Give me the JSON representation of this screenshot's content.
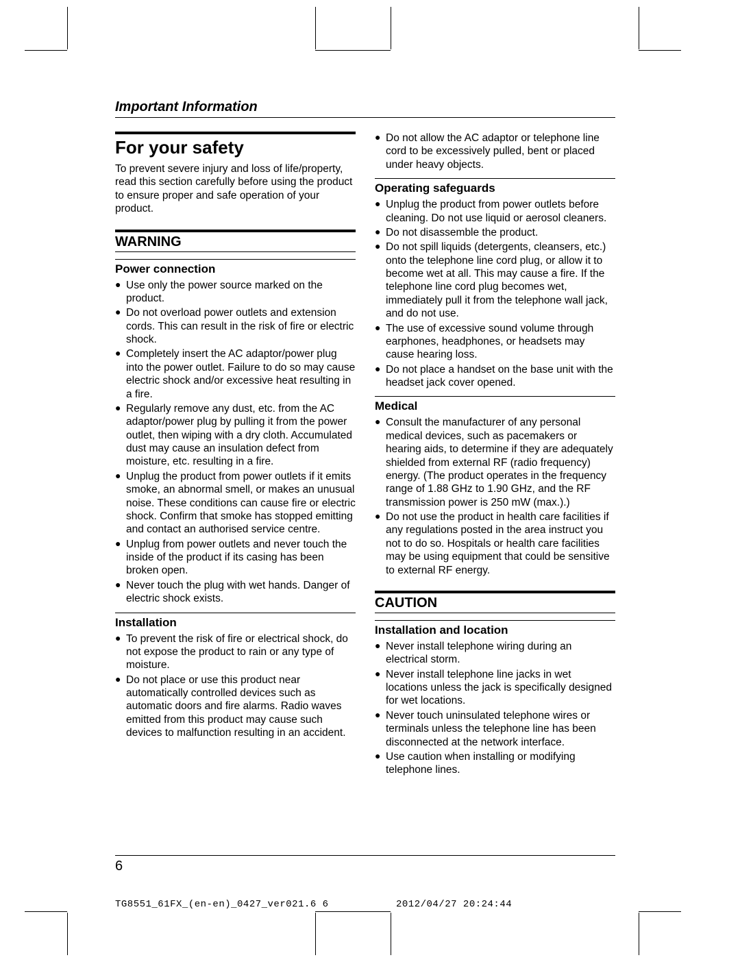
{
  "chapter_title": "Important Information",
  "page_number": "6",
  "footer": {
    "left": "TG8551_61FX_(en-en)_0427_ver021.6   6",
    "right": "2012/04/27   20:24:44"
  },
  "left_column": {
    "title_h1": "For your safety",
    "intro": "To prevent severe injury and loss of life/property, read this section carefully before using the product to ensure proper and safe operation of your product.",
    "warning_h2": "WARNING",
    "sections": [
      {
        "h3": "Power connection",
        "items": [
          "Use only the power source marked on the product.",
          "Do not overload power outlets and extension cords. This can result in the risk of fire or electric shock.",
          "Completely insert the AC adaptor/power plug into the power outlet. Failure to do so may cause electric shock and/or excessive heat resulting in a fire.",
          "Regularly remove any dust, etc. from the AC adaptor/power plug by pulling it from the power outlet, then wiping with a dry cloth. Accumulated dust may cause an insulation defect from moisture, etc. resulting in a fire.",
          "Unplug the product from power outlets if it emits smoke, an abnormal smell, or makes an unusual noise. These conditions can cause fire or electric shock. Confirm that smoke has stopped emitting and contact an authorised service centre.",
          "Unplug from power outlets and never touch the inside of the product if its casing has been broken open.",
          "Never touch the plug with wet hands. Danger of electric shock exists."
        ]
      },
      {
        "h3": "Installation",
        "items": [
          "To prevent the risk of fire or electrical shock, do not expose the product to rain or any type of moisture.",
          "Do not place or use this product near automatically controlled devices such as automatic doors and fire alarms. Radio waves emitted from this product may cause such devices to malfunction resulting in an accident."
        ]
      }
    ]
  },
  "right_column": {
    "carryover_items": [
      "Do not allow the AC adaptor or telephone line cord to be excessively pulled, bent or placed under heavy objects."
    ],
    "sections": [
      {
        "h3": "Operating safeguards",
        "items": [
          "Unplug the product from power outlets before cleaning. Do not use liquid or aerosol cleaners.",
          "Do not disassemble the product.",
          "Do not spill liquids (detergents, cleansers, etc.) onto the telephone line cord plug, or allow it to become wet at all. This may cause a fire. If the telephone line cord plug becomes wet, immediately pull it from the telephone wall jack, and do not use.",
          "The use of excessive sound volume through earphones, headphones, or headsets may cause hearing loss.",
          "Do not place a handset on the base unit with the headset jack cover opened."
        ]
      },
      {
        "h3": "Medical",
        "items": [
          "Consult the manufacturer of any personal medical devices, such as pacemakers or hearing aids, to determine if they are adequately shielded from external RF (radio frequency) energy. (The product operates in the frequency range of 1.88 GHz to 1.90 GHz, and the RF transmission power is 250 mW (max.).)",
          "Do not use the product in health care facilities if any regulations posted in the area instruct you not to do so. Hospitals or health care facilities may be using equipment that could be sensitive to external RF energy."
        ]
      }
    ],
    "caution_h2": "CAUTION",
    "caution_sections": [
      {
        "h3": "Installation and location",
        "items": [
          "Never install telephone wiring during an electrical storm.",
          "Never install telephone line jacks in wet locations unless the jack is specifically designed for wet locations.",
          "Never touch uninsulated telephone wires or terminals unless the telephone line has been disconnected at the network interface.",
          "Use caution when installing or modifying telephone lines."
        ]
      }
    ]
  }
}
